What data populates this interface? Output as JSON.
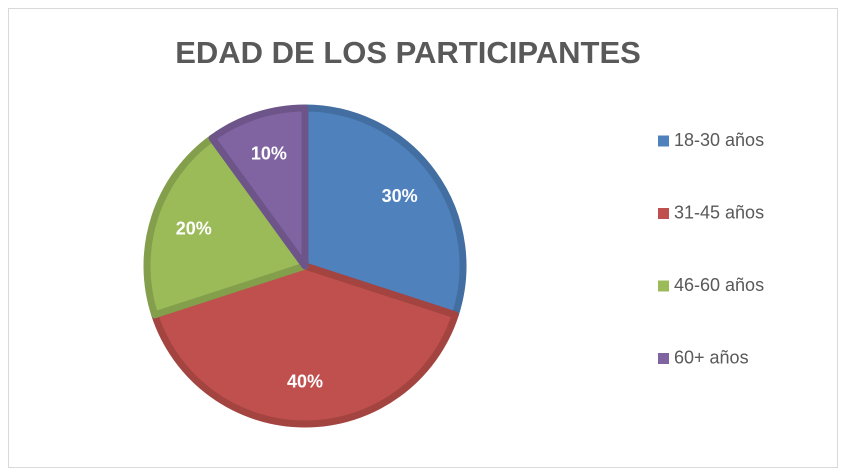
{
  "chart_data": {
    "type": "pie",
    "title": "EDAD DE LOS PARTICIPANTES",
    "categories": [
      "18-30 años",
      "31-45 años",
      "46-60 años",
      "60+ años"
    ],
    "values": [
      30,
      40,
      20,
      10
    ],
    "value_labels": [
      "30%",
      "40%",
      "20%",
      "10%"
    ],
    "colors": [
      "#4F81BD",
      "#C0504D",
      "#9BBB59",
      "#8064A2"
    ],
    "legend": "right"
  }
}
